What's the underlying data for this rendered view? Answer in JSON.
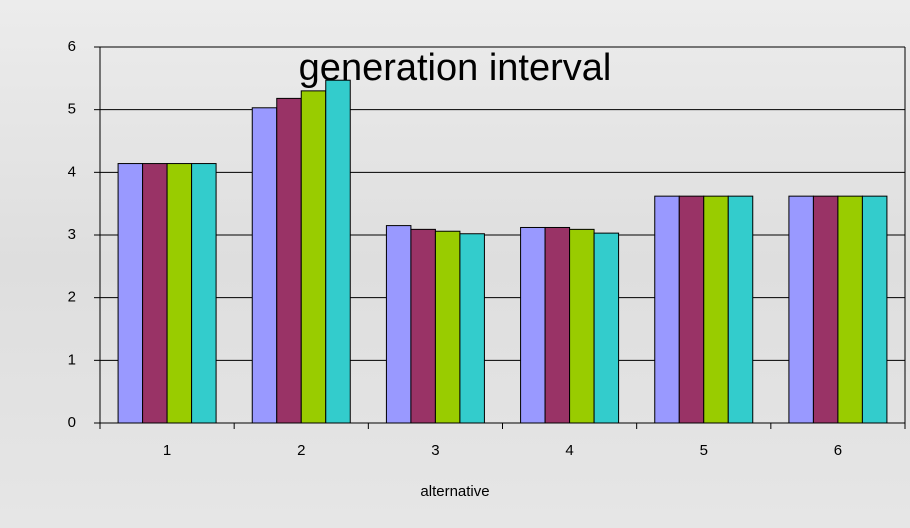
{
  "chart_data": {
    "type": "bar",
    "title": "generation interval",
    "x_label": "alternative",
    "categories": [
      "1",
      "2",
      "3",
      "4",
      "5",
      "6"
    ],
    "series": [
      {
        "color": "#9999ff",
        "values": [
          4.14,
          5.03,
          3.15,
          3.12,
          3.62,
          3.62
        ]
      },
      {
        "color": "#993366",
        "values": [
          4.14,
          5.18,
          3.09,
          3.12,
          3.62,
          3.62
        ]
      },
      {
        "color": "#99cc00",
        "values": [
          4.14,
          5.3,
          3.06,
          3.09,
          3.62,
          3.62
        ]
      },
      {
        "color": "#33cccc",
        "values": [
          4.14,
          5.47,
          3.02,
          3.03,
          3.62,
          3.62
        ]
      }
    ],
    "ylim": [
      0,
      6
    ],
    "yticks": [
      0,
      1,
      2,
      3,
      4,
      5,
      6
    ],
    "grid": true
  }
}
